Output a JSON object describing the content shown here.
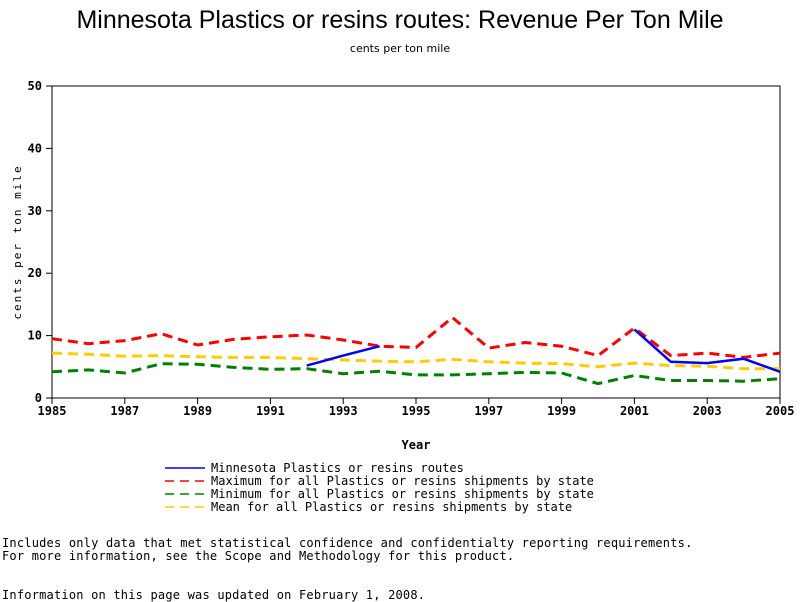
{
  "chart_data": {
    "type": "line",
    "title": "Minnesota Plastics or resins routes: Revenue Per Ton Mile",
    "subtitle": "cents per ton mile",
    "xlabel": "Year",
    "ylabel": "cents per ton mile",
    "xlim": [
      1985,
      2005
    ],
    "ylim": [
      0,
      50
    ],
    "xticks": [
      "1985",
      "1987",
      "1989",
      "1991",
      "1993",
      "1995",
      "1997",
      "1999",
      "2001",
      "2003",
      "2005"
    ],
    "yticks": [
      "0",
      "10",
      "20",
      "30",
      "40",
      "50"
    ],
    "grid": false,
    "legend_position": "bottom",
    "series": [
      {
        "name": "Minnesota Plastics or resins routes",
        "color": "#0000ff",
        "dash": "solid",
        "x": [
          1992,
          1993,
          1994,
          null,
          2001,
          2002,
          2003,
          2004,
          2005
        ],
        "y": [
          5.2,
          6.8,
          8.3,
          null,
          11.0,
          5.8,
          5.6,
          6.3,
          4.2
        ]
      },
      {
        "name": "Maximum for all Plastics or resins shipments by state",
        "color": "#ff0000",
        "dash": "dashed",
        "x": [
          1985,
          1986,
          1987,
          1988,
          1989,
          1990,
          1991,
          1992,
          1993,
          1994,
          1995,
          1996,
          1997,
          1998,
          1999,
          2000,
          2001,
          2002,
          2003,
          2004,
          2005
        ],
        "y": [
          9.5,
          8.7,
          9.2,
          10.3,
          8.5,
          9.4,
          9.8,
          10.1,
          9.3,
          8.3,
          8.1,
          12.9,
          8.0,
          8.9,
          8.3,
          6.8,
          11.2,
          6.8,
          7.2,
          6.5,
          7.2
        ]
      },
      {
        "name": "Minimum for all Plastics or resins shipments by state",
        "color": "#008000",
        "dash": "dashed",
        "x": [
          1985,
          1986,
          1987,
          1988,
          1989,
          1990,
          1991,
          1992,
          1993,
          1994,
          1995,
          1996,
          1997,
          1998,
          1999,
          2000,
          2001,
          2002,
          2003,
          2004,
          2005
        ],
        "y": [
          4.2,
          4.5,
          4.0,
          5.5,
          5.4,
          4.9,
          4.6,
          4.7,
          3.9,
          4.3,
          3.7,
          3.7,
          3.9,
          4.1,
          4.0,
          2.3,
          3.6,
          2.8,
          2.8,
          2.7,
          3.1
        ]
      },
      {
        "name": "Mean for all Plastics or resins shipments by state",
        "color": "#ffcc00",
        "dash": "dashed",
        "x": [
          1985,
          1986,
          1987,
          1988,
          1989,
          1990,
          1991,
          1992,
          1993,
          1994,
          1995,
          1996,
          1997,
          1998,
          1999,
          2000,
          2001,
          2002,
          2003,
          2004,
          2005
        ],
        "y": [
          7.2,
          7.0,
          6.7,
          6.8,
          6.6,
          6.5,
          6.5,
          6.3,
          6.1,
          5.9,
          5.8,
          6.2,
          5.8,
          5.6,
          5.5,
          5.0,
          5.6,
          5.2,
          5.1,
          4.7,
          4.7
        ]
      }
    ]
  },
  "footnotes": {
    "line1": "Includes only data that met statistical confidence and confidentialty reporting requirements.",
    "line2": "For more information, see the Scope and Methodology for this product.",
    "updated": "Information on this page was updated on February 1, 2008."
  }
}
